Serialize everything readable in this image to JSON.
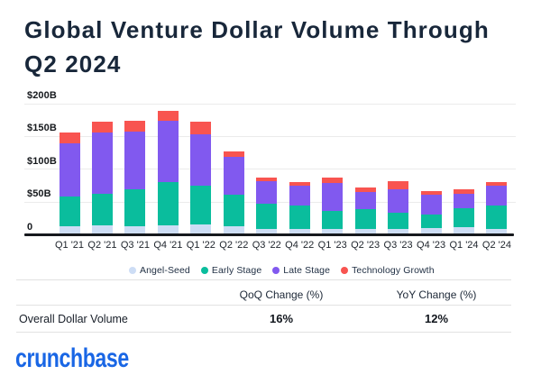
{
  "title": "Global Venture Dollar Volume Through Q2 2024",
  "colors": {
    "title_text": "#19273a",
    "angel_seed": "#cdddf5",
    "early_stage": "#0abd9d",
    "late_stage": "#8159ef",
    "technology_growth": "#f85450",
    "axis": "#16191d",
    "gridline": "#ebebeb",
    "logo_blue": "#1966e5"
  },
  "chart_data": {
    "type": "bar",
    "stacked": true,
    "title": "Global Venture Dollar Volume Through Q2 2024",
    "unit": "USD billions",
    "categories": [
      "Q1 '21",
      "Q2 '21",
      "Q3 '21",
      "Q4 '21",
      "Q1 '22",
      "Q2 '22",
      "Q3 '22",
      "Q4 '22",
      "Q1 '23",
      "Q2 '23",
      "Q3 '23",
      "Q4 '23",
      "Q1 '24",
      "Q2 '24"
    ],
    "series": [
      {
        "name": "Angel-Seed",
        "color": "#cdddf5",
        "values": [
          13,
          15,
          13,
          14,
          16,
          13,
          9,
          9,
          9,
          9,
          9,
          10,
          11,
          9
        ]
      },
      {
        "name": "Early Stage",
        "color": "#0abd9d",
        "values": [
          46,
          48,
          56,
          66,
          59,
          48,
          38,
          35,
          27,
          30,
          24,
          21,
          29,
          35
        ]
      },
      {
        "name": "Late Stage",
        "color": "#8159ef",
        "values": [
          81,
          93,
          88,
          94,
          78,
          58,
          35,
          31,
          43,
          26,
          36,
          30,
          23,
          31
        ]
      },
      {
        "name": "Technology Growth",
        "color": "#f85450",
        "values": [
          16,
          16,
          17,
          15,
          19,
          8,
          5,
          5,
          8,
          7,
          13,
          5,
          7,
          6
        ]
      }
    ],
    "totals": [
      156,
      172,
      174,
      189,
      172,
      127,
      87,
      80,
      87,
      72,
      82,
      66,
      70,
      81
    ],
    "ylim": [
      0,
      200
    ],
    "yticks": [
      {
        "value": 0,
        "label": "0"
      },
      {
        "value": 50,
        "label": "$50B"
      },
      {
        "value": 100,
        "label": "$100B"
      },
      {
        "value": 150,
        "label": "$150B"
      },
      {
        "value": 200,
        "label": "$200B"
      }
    ],
    "grid": true,
    "legend_position": "bottom"
  },
  "legend": {
    "items": [
      {
        "label": "Angel-Seed",
        "color": "#cdddf5"
      },
      {
        "label": "Early Stage",
        "color": "#0abd9d"
      },
      {
        "label": "Late Stage",
        "color": "#8159ef"
      },
      {
        "label": "Technology Growth",
        "color": "#f85450"
      }
    ]
  },
  "table": {
    "row_header": "Overall Dollar Volume",
    "col_headers": [
      "QoQ Change (%)",
      "YoY Change (%)"
    ],
    "values": [
      "16%",
      "12%"
    ]
  },
  "logo": {
    "text": "crunchbase"
  }
}
